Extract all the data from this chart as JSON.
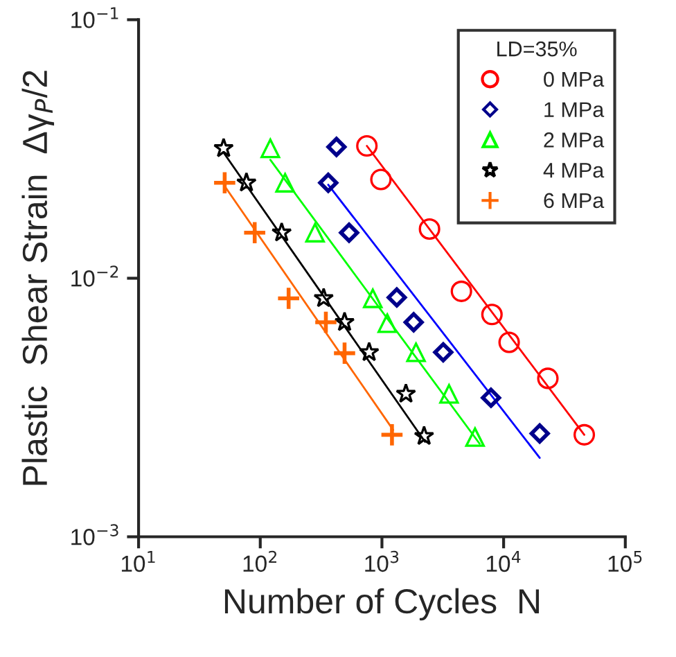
{
  "chart_data": {
    "type": "scatter",
    "xlabel": "Number of Cycles  N",
    "ylabel": "Plastic  Shear Strain  Δγ$_{P}$/2",
    "legend_title": "LD=35%",
    "legend": "top right",
    "grid": false,
    "log": "xy",
    "xlim": [
      10,
      100000
    ],
    "xticks": [
      {
        "value": 10,
        "label": "10$^{1}$"
      },
      {
        "value": 100,
        "label": "10$^{2}$"
      },
      {
        "value": 1000,
        "label": "10$^{3}$"
      },
      {
        "value": 10000,
        "label": "10$^{4}$"
      },
      {
        "value": 100000,
        "label": "10$^{5}$"
      }
    ],
    "ylim": [
      0.001,
      0.1
    ],
    "yticks": [
      {
        "value": 0.001,
        "label": "10$^{−3}$"
      },
      {
        "value": 0.01,
        "label": "10$^{−2}$"
      },
      {
        "value": 0.1,
        "label": "10$^{−1}$"
      }
    ],
    "series": [
      {
        "name": "0 MPa",
        "marker": "circle",
        "color": "#ff0000",
        "x": [
          752,
          981,
          2460,
          4500,
          8020,
          11100,
          23100,
          46000
        ],
        "values": [
          0.0325,
          0.0241,
          0.0155,
          0.0089,
          0.00724,
          0.00565,
          0.0041,
          0.00248
        ]
      },
      {
        "name": "1 MPa",
        "marker": "diamond",
        "color": "#00008b",
        "x": [
          423,
          362,
          537,
          1324,
          1823,
          3190,
          7870,
          19800
        ],
        "values": [
          0.0322,
          0.0234,
          0.015,
          0.00843,
          0.00676,
          0.00517,
          0.00345,
          0.00251
        ]
      },
      {
        "name": "2 MPa",
        "marker": "triangle",
        "color": "#00ff00",
        "x": [
          121,
          160,
          282,
          841,
          1107,
          1906,
          3560,
          5820
        ],
        "values": [
          0.0318,
          0.0234,
          0.015,
          0.00836,
          0.0067,
          0.00517,
          0.00357,
          0.00243
        ]
      },
      {
        "name": "4 MPa",
        "marker": "star",
        "color": "#000000",
        "x": [
          50,
          77,
          150,
          332,
          493,
          785,
          1574,
          2220
        ],
        "values": [
          0.0318,
          0.0234,
          0.015,
          0.00836,
          0.00676,
          0.00517,
          0.00357,
          0.00245
        ]
      },
      {
        "name": "6 MPa",
        "marker": "cross",
        "color": "#ff6600",
        "x": [
          51,
          90,
          171,
          346,
          493,
          1209
        ],
        "values": [
          0.0234,
          0.015,
          0.00836,
          0.00676,
          0.00513,
          0.00248
        ]
      },
      {
        "type": "line",
        "color": "#ff0000",
        "x": [
          752,
          46000
        ],
        "values": [
          0.0325,
          0.00248
        ]
      },
      {
        "type": "line",
        "color": "#0000ff",
        "x": [
          362,
          19800
        ],
        "values": [
          0.023,
          0.00202
        ]
      },
      {
        "type": "line",
        "color": "#00ff00",
        "x": [
          121,
          6350
        ],
        "values": [
          0.0287,
          0.00229
        ]
      },
      {
        "type": "line",
        "color": "#000000",
        "x": [
          50,
          2260
        ],
        "values": [
          0.0306,
          0.00233
        ]
      },
      {
        "type": "line",
        "color": "#ff6600",
        "x": [
          52,
          1237
        ],
        "values": [
          0.0224,
          0.00259
        ]
      }
    ]
  }
}
